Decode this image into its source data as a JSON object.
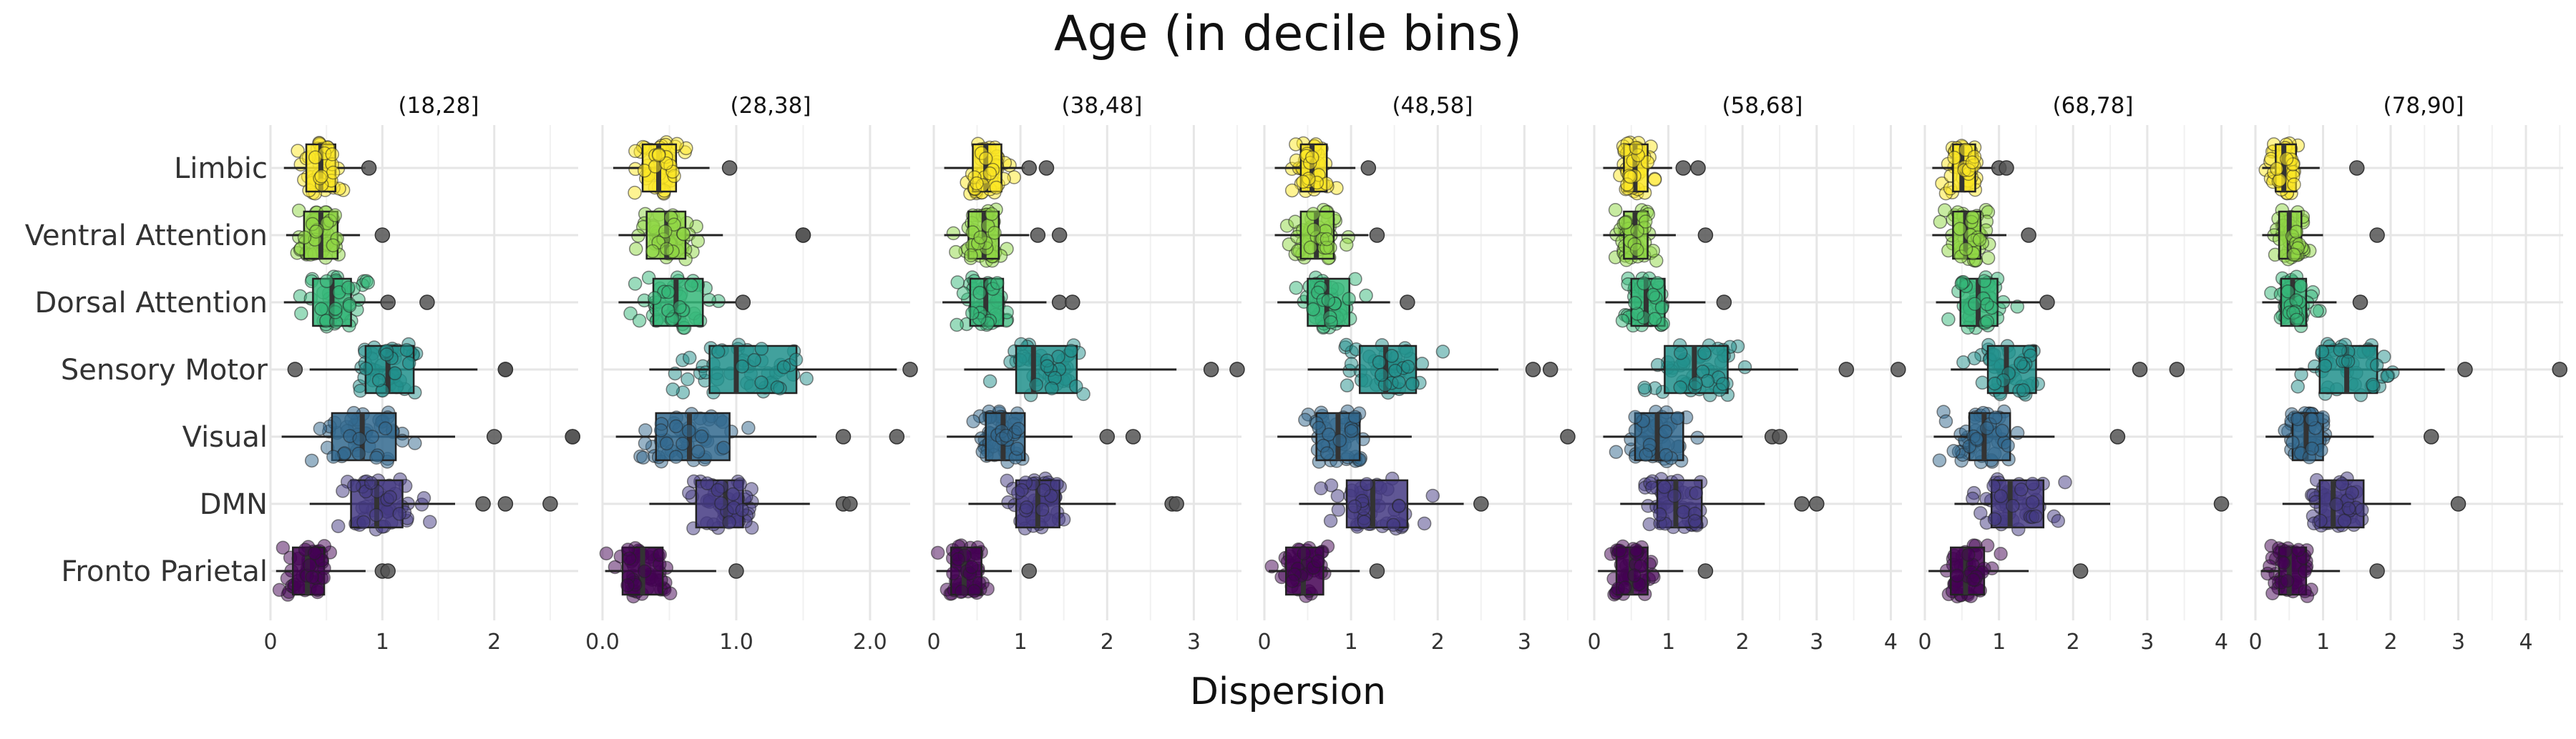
{
  "chart_data": {
    "type": "boxplot",
    "title": "Age (in decile bins)",
    "xlabel": "Dispersion",
    "ylabel": "",
    "grid": true,
    "networks": [
      "Limbic",
      "Ventral Attention",
      "Dorsal Attention",
      "Sensory Motor",
      "Visual",
      "DMN",
      "Fronto Parietal"
    ],
    "colors": {
      "Limbic": "#FDE725",
      "Ventral Attention": "#8FD744",
      "Dorsal Attention": "#35B779",
      "Sensory Motor": "#21908C",
      "Visual": "#31688E",
      "DMN": "#443A83",
      "Fronto Parietal": "#440154"
    },
    "panels": [
      {
        "label": "(18,28]",
        "xlim": [
          0,
          2.75
        ],
        "ticks": [
          0,
          1,
          2
        ],
        "tick_labels": [
          "0",
          "1",
          "2"
        ],
        "boxes": [
          {
            "q1": 0.32,
            "median": 0.45,
            "q3": 0.58,
            "whisker_low": 0.12,
            "whisker_high": 0.85,
            "outliers": [
              0.88
            ]
          },
          {
            "q1": 0.3,
            "median": 0.45,
            "q3": 0.6,
            "whisker_low": 0.14,
            "whisker_high": 0.8,
            "outliers": [
              1.0
            ]
          },
          {
            "q1": 0.38,
            "median": 0.55,
            "q3": 0.72,
            "whisker_low": 0.12,
            "whisker_high": 1.1,
            "outliers": [
              1.05,
              1.4
            ]
          },
          {
            "q1": 0.85,
            "median": 1.05,
            "q3": 1.28,
            "whisker_low": 0.35,
            "whisker_high": 1.85,
            "outliers": [
              0.22,
              2.1,
              2.1
            ]
          },
          {
            "q1": 0.55,
            "median": 0.82,
            "q3": 1.12,
            "whisker_low": 0.1,
            "whisker_high": 1.65,
            "outliers": [
              2.0,
              2.7,
              2.7
            ]
          },
          {
            "q1": 0.72,
            "median": 0.95,
            "q3": 1.18,
            "whisker_low": 0.35,
            "whisker_high": 1.65,
            "outliers": [
              1.9,
              2.1,
              2.5
            ]
          },
          {
            "q1": 0.2,
            "median": 0.33,
            "q3": 0.48,
            "whisker_low": 0.05,
            "whisker_high": 0.85,
            "outliers": [
              1.0,
              1.05
            ]
          }
        ]
      },
      {
        "label": "(28,38]",
        "xlim": [
          0,
          2.3
        ],
        "ticks": [
          0,
          1,
          2
        ],
        "tick_labels": [
          "0.0",
          "1.0",
          "2.0"
        ],
        "boxes": [
          {
            "q1": 0.3,
            "median": 0.42,
            "q3": 0.55,
            "whisker_low": 0.08,
            "whisker_high": 0.8,
            "outliers": [
              0.95
            ]
          },
          {
            "q1": 0.33,
            "median": 0.48,
            "q3": 0.62,
            "whisker_low": 0.12,
            "whisker_high": 0.9,
            "outliers": [
              1.5,
              1.5
            ]
          },
          {
            "q1": 0.38,
            "median": 0.55,
            "q3": 0.75,
            "whisker_low": 0.12,
            "whisker_high": 1.0,
            "outliers": [
              1.05
            ]
          },
          {
            "q1": 0.8,
            "median": 1.0,
            "q3": 1.45,
            "whisker_low": 0.35,
            "whisker_high": 2.2,
            "outliers": [
              2.3
            ]
          },
          {
            "q1": 0.4,
            "median": 0.65,
            "q3": 0.95,
            "whisker_low": 0.1,
            "whisker_high": 1.6,
            "outliers": [
              1.8,
              2.2
            ]
          },
          {
            "q1": 0.7,
            "median": 0.92,
            "q3": 1.05,
            "whisker_low": 0.35,
            "whisker_high": 1.55,
            "outliers": [
              1.8,
              1.85
            ]
          },
          {
            "q1": 0.15,
            "median": 0.3,
            "q3": 0.45,
            "whisker_low": 0.02,
            "whisker_high": 0.85,
            "outliers": [
              1.0
            ]
          }
        ]
      },
      {
        "label": "(38,48]",
        "xlim": [
          0,
          3.55
        ],
        "ticks": [
          0,
          1,
          2,
          3
        ],
        "tick_labels": [
          "0",
          "1",
          "2",
          "3"
        ],
        "boxes": [
          {
            "q1": 0.45,
            "median": 0.6,
            "q3": 0.78,
            "whisker_low": 0.12,
            "whisker_high": 1.05,
            "outliers": [
              1.1,
              1.3
            ]
          },
          {
            "q1": 0.4,
            "median": 0.58,
            "q3": 0.75,
            "whisker_low": 0.12,
            "whisker_high": 1.1,
            "outliers": [
              1.2,
              1.45
            ]
          },
          {
            "q1": 0.42,
            "median": 0.6,
            "q3": 0.8,
            "whisker_low": 0.1,
            "whisker_high": 1.3,
            "outliers": [
              1.45,
              1.6
            ]
          },
          {
            "q1": 0.95,
            "median": 1.15,
            "q3": 1.65,
            "whisker_low": 0.35,
            "whisker_high": 2.8,
            "outliers": [
              3.2,
              3.5
            ]
          },
          {
            "q1": 0.6,
            "median": 0.8,
            "q3": 1.05,
            "whisker_low": 0.15,
            "whisker_high": 1.6,
            "outliers": [
              2.0,
              2.3
            ]
          },
          {
            "q1": 0.95,
            "median": 1.2,
            "q3": 1.45,
            "whisker_low": 0.4,
            "whisker_high": 2.1,
            "outliers": [
              2.75,
              2.8
            ]
          },
          {
            "q1": 0.2,
            "median": 0.35,
            "q3": 0.55,
            "whisker_low": 0.03,
            "whisker_high": 0.9,
            "outliers": [
              1.1
            ]
          }
        ]
      },
      {
        "label": "(48,58]",
        "xlim": [
          0,
          3.55
        ],
        "ticks": [
          0,
          1,
          2,
          3
        ],
        "tick_labels": [
          "0",
          "1",
          "2",
          "3"
        ],
        "boxes": [
          {
            "q1": 0.42,
            "median": 0.55,
            "q3": 0.72,
            "whisker_low": 0.12,
            "whisker_high": 1.05,
            "outliers": [
              1.2
            ]
          },
          {
            "q1": 0.42,
            "median": 0.6,
            "q3": 0.8,
            "whisker_low": 0.12,
            "whisker_high": 1.2,
            "outliers": [
              1.3
            ]
          },
          {
            "q1": 0.5,
            "median": 0.72,
            "q3": 0.98,
            "whisker_low": 0.15,
            "whisker_high": 1.45,
            "outliers": [
              1.65
            ]
          },
          {
            "q1": 1.1,
            "median": 1.4,
            "q3": 1.75,
            "whisker_low": 0.5,
            "whisker_high": 2.7,
            "outliers": [
              3.1,
              3.3
            ]
          },
          {
            "q1": 0.6,
            "median": 0.85,
            "q3": 1.1,
            "whisker_low": 0.15,
            "whisker_high": 1.7,
            "outliers": [
              3.5
            ]
          },
          {
            "q1": 0.95,
            "median": 1.25,
            "q3": 1.65,
            "whisker_low": 0.4,
            "whisker_high": 2.3,
            "outliers": [
              2.5
            ]
          },
          {
            "q1": 0.25,
            "median": 0.45,
            "q3": 0.68,
            "whisker_low": 0.05,
            "whisker_high": 1.1,
            "outliers": [
              1.3
            ]
          }
        ]
      },
      {
        "label": "(58,68]",
        "xlim": [
          0,
          4.15
        ],
        "ticks": [
          0,
          1,
          2,
          3,
          4
        ],
        "tick_labels": [
          "0",
          "1",
          "2",
          "3",
          "4"
        ],
        "boxes": [
          {
            "q1": 0.4,
            "median": 0.55,
            "q3": 0.72,
            "whisker_low": 0.12,
            "whisker_high": 1.05,
            "outliers": [
              1.2,
              1.4
            ]
          },
          {
            "q1": 0.4,
            "median": 0.55,
            "q3": 0.72,
            "whisker_low": 0.12,
            "whisker_high": 1.1,
            "outliers": [
              1.5
            ]
          },
          {
            "q1": 0.5,
            "median": 0.7,
            "q3": 0.95,
            "whisker_low": 0.15,
            "whisker_high": 1.5,
            "outliers": [
              1.75
            ]
          },
          {
            "q1": 0.95,
            "median": 1.35,
            "q3": 1.8,
            "whisker_low": 0.4,
            "whisker_high": 2.75,
            "outliers": [
              3.4,
              4.1
            ]
          },
          {
            "q1": 0.55,
            "median": 0.85,
            "q3": 1.2,
            "whisker_low": 0.12,
            "whisker_high": 2.0,
            "outliers": [
              2.4,
              2.5
            ]
          },
          {
            "q1": 0.85,
            "median": 1.1,
            "q3": 1.45,
            "whisker_low": 0.35,
            "whisker_high": 2.3,
            "outliers": [
              2.8,
              3.0
            ]
          },
          {
            "q1": 0.3,
            "median": 0.5,
            "q3": 0.72,
            "whisker_low": 0.05,
            "whisker_high": 1.2,
            "outliers": [
              1.5
            ]
          }
        ]
      },
      {
        "label": "(68,78]",
        "xlim": [
          0,
          4.15
        ],
        "ticks": [
          0,
          1,
          2,
          3,
          4
        ],
        "tick_labels": [
          "0",
          "1",
          "2",
          "3",
          "4"
        ],
        "boxes": [
          {
            "q1": 0.38,
            "median": 0.5,
            "q3": 0.68,
            "whisker_low": 0.1,
            "whisker_high": 0.95,
            "outliers": [
              1.0,
              1.1
            ]
          },
          {
            "q1": 0.38,
            "median": 0.55,
            "q3": 0.75,
            "whisker_low": 0.1,
            "whisker_high": 1.1,
            "outliers": [
              1.4
            ]
          },
          {
            "q1": 0.48,
            "median": 0.72,
            "q3": 0.98,
            "whisker_low": 0.15,
            "whisker_high": 1.55,
            "outliers": [
              1.65
            ]
          },
          {
            "q1": 0.85,
            "median": 1.1,
            "q3": 1.5,
            "whisker_low": 0.35,
            "whisker_high": 2.5,
            "outliers": [
              2.9,
              3.4
            ]
          },
          {
            "q1": 0.6,
            "median": 0.8,
            "q3": 1.15,
            "whisker_low": 0.12,
            "whisker_high": 1.75,
            "outliers": [
              2.6
            ]
          },
          {
            "q1": 0.9,
            "median": 1.15,
            "q3": 1.6,
            "whisker_low": 0.4,
            "whisker_high": 2.5,
            "outliers": [
              4.0
            ]
          },
          {
            "q1": 0.35,
            "median": 0.55,
            "q3": 0.8,
            "whisker_low": 0.05,
            "whisker_high": 1.4,
            "outliers": [
              2.1
            ]
          }
        ]
      },
      {
        "label": "(78,90]",
        "xlim": [
          0,
          4.55
        ],
        "ticks": [
          0,
          1,
          2,
          3,
          4
        ],
        "tick_labels": [
          "0",
          "1",
          "2",
          "3",
          "4"
        ],
        "boxes": [
          {
            "q1": 0.3,
            "median": 0.42,
            "q3": 0.6,
            "whisker_low": 0.1,
            "whisker_high": 0.95,
            "outliers": [
              1.5
            ]
          },
          {
            "q1": 0.35,
            "median": 0.5,
            "q3": 0.68,
            "whisker_low": 0.1,
            "whisker_high": 1.0,
            "outliers": [
              1.8
            ]
          },
          {
            "q1": 0.38,
            "median": 0.55,
            "q3": 0.75,
            "whisker_low": 0.1,
            "whisker_high": 1.2,
            "outliers": [
              1.55
            ]
          },
          {
            "q1": 0.95,
            "median": 1.35,
            "q3": 1.8,
            "whisker_low": 0.3,
            "whisker_high": 2.8,
            "outliers": [
              3.1,
              4.5
            ]
          },
          {
            "q1": 0.55,
            "median": 0.75,
            "q3": 1.0,
            "whisker_low": 0.15,
            "whisker_high": 1.75,
            "outliers": [
              2.6
            ]
          },
          {
            "q1": 0.95,
            "median": 1.15,
            "q3": 1.6,
            "whisker_low": 0.4,
            "whisker_high": 2.3,
            "outliers": [
              3.0
            ]
          },
          {
            "q1": 0.35,
            "median": 0.5,
            "q3": 0.75,
            "whisker_low": 0.08,
            "whisker_high": 1.25,
            "outliers": [
              1.8
            ]
          }
        ]
      }
    ]
  }
}
